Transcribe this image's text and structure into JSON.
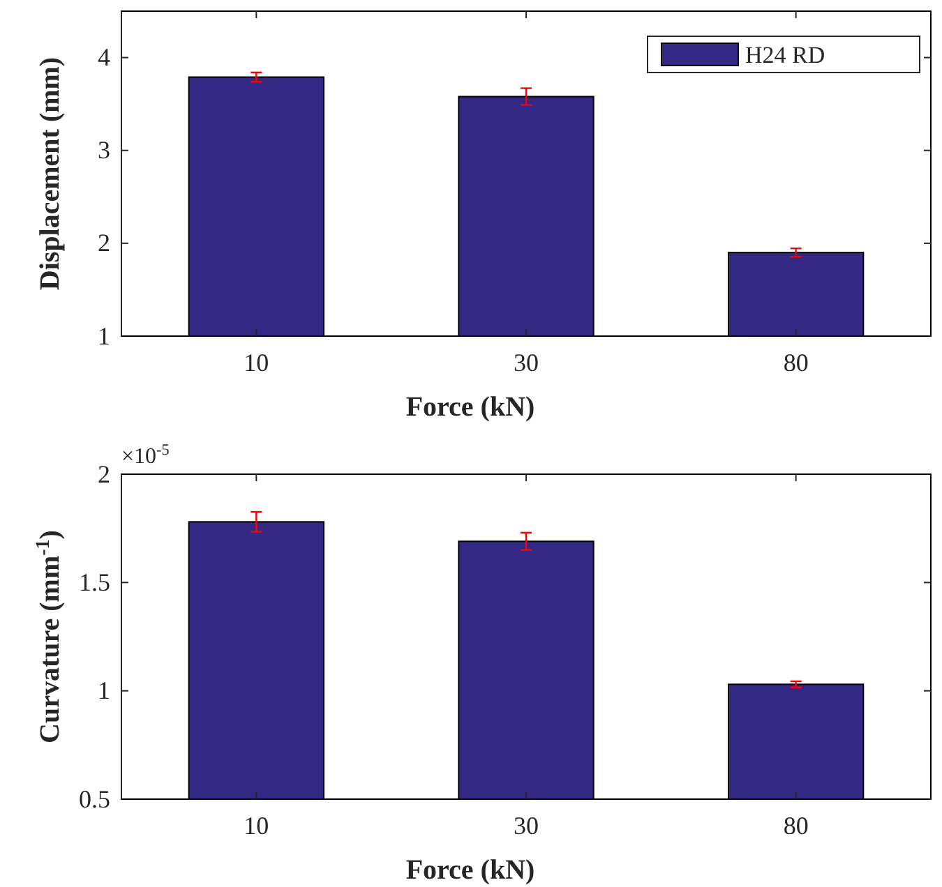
{
  "chart_data": [
    {
      "type": "bar",
      "xlabel": "Force (kN)",
      "ylabel": "Displacement (mm)",
      "categories": [
        "10",
        "30",
        "80"
      ],
      "series": [
        {
          "name": "H24 RD",
          "color": "#332884",
          "values": [
            3.79,
            3.58,
            1.9
          ],
          "errors": [
            0.05,
            0.09,
            0.045
          ]
        }
      ],
      "ylim": [
        1,
        4.5
      ],
      "yticks": [
        1,
        2,
        3,
        4
      ],
      "legend": "top right",
      "grid": false
    },
    {
      "type": "bar",
      "xlabel": "Force (kN)",
      "ylabel": "Curvature (mm$^{-1}$)",
      "categories": [
        "10",
        "30",
        "80"
      ],
      "series": [
        {
          "color": "#332884",
          "values": [
            1.78,
            1.69,
            1.03
          ],
          "errors": [
            0.046,
            0.04,
            0.014
          ]
        }
      ],
      "ylim": [
        0.5,
        2
      ],
      "yticks": [
        0.5,
        1,
        1.5,
        2
      ],
      "annotations": [
        "×10$^{-5}$"
      ],
      "grid": false
    }
  ]
}
